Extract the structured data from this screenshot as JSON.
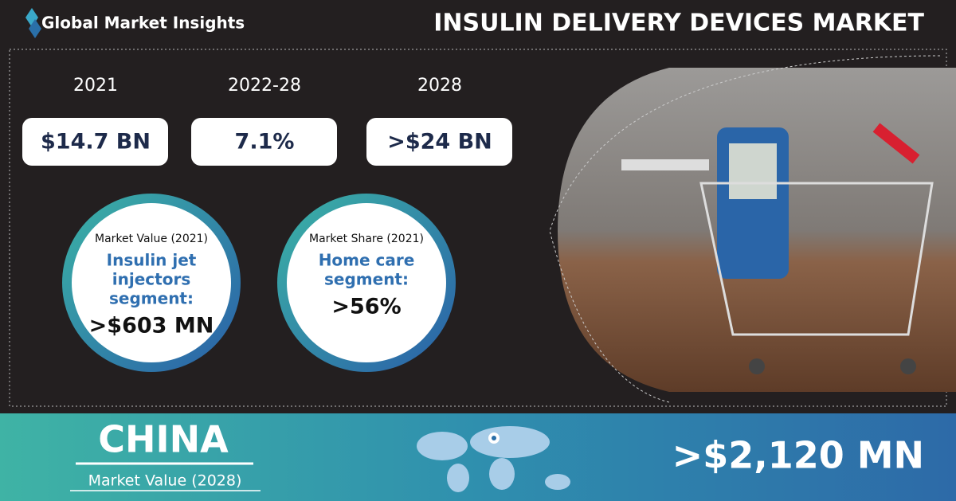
{
  "header": {
    "brand": "Global Market Insights",
    "title": "INSULIN DELIVERY DEVICES MARKET"
  },
  "stats": [
    {
      "period": "2021",
      "value": "$14.7 BN"
    },
    {
      "period": "2022-28",
      "value": "7.1%"
    },
    {
      "period": "2028",
      "value": ">$24 BN"
    }
  ],
  "highlights": [
    {
      "heading": "Market Value (2021)",
      "lines": [
        "Insulin jet",
        "injectors",
        "segment:"
      ],
      "value": ">$603 MN"
    },
    {
      "heading": "Market Share (2021)",
      "lines": [
        "Home care",
        "segment:"
      ],
      "value": ">56%"
    }
  ],
  "region": {
    "name": "CHINA",
    "subtitle": "Market Value (2028)",
    "value": ">$2,120 MN"
  }
}
